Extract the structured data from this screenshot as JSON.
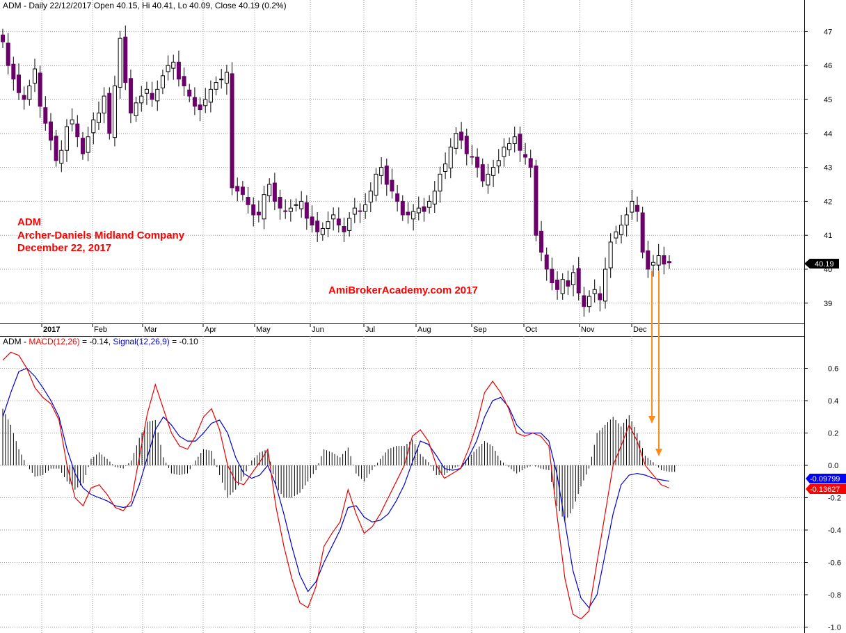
{
  "price_panel": {
    "header": "ADM - Daily 22/12/2017 Open 40.15, Hi 40.41, Lo 40.09, Close 40.19 (0.2%)",
    "annotation_lines": [
      "ADM",
      "Archer-Daniels Midland Company",
      "December 22, 2017"
    ],
    "watermark": "AmiBrokerAcademy.com  2017",
    "last_price_label": "40.19"
  },
  "macd_panel": {
    "prefix": "ADM - ",
    "macd_label": "MACD(12,26)",
    "macd_value": " = -0.14, ",
    "signal_label": "Signal(12,26,9)",
    "signal_value": " = -0.10",
    "signal_last_label": "-0.09799",
    "macd_last_label": "-0.13627"
  },
  "colors": {
    "candle_up": "#6b006b",
    "candle_line": "#000000",
    "macd_line": "#e60000",
    "signal_line": "#0000cc",
    "histogram": "#000000",
    "annotation": "#ff0000",
    "arrow": "#ff8c1a",
    "grid": "#999999"
  },
  "chart_data": [
    {
      "type": "candlestick",
      "title": "ADM - Daily 22/12/2017 Open 40.15, Hi 40.41, Lo 40.09, Close 40.19 (0.2%)",
      "x_tick_labels": [
        "2017",
        "Feb",
        "Mar",
        "Apr",
        "May",
        "Jun",
        "Jul",
        "Aug",
        "Sep",
        "Oct",
        "Nov",
        "Dec"
      ],
      "y_ticks": [
        39,
        40,
        41,
        42,
        43,
        44,
        45,
        46,
        47
      ],
      "ylim": [
        38.4,
        47.7
      ],
      "grid": true,
      "last_close": 40.19,
      "close_series_approx": [
        46.7,
        46.0,
        45.6,
        45.2,
        45.0,
        45.4,
        45.9,
        44.8,
        44.3,
        43.8,
        43.2,
        43.5,
        44.2,
        44.4,
        43.9,
        43.4,
        43.9,
        44.4,
        44.6,
        45.1,
        44.0,
        45.4,
        46.8,
        45.5,
        44.6,
        44.9,
        45.1,
        45.3,
        45.0,
        45.3,
        45.7,
        46.0,
        46.1,
        45.6,
        45.4,
        45.1,
        44.8,
        44.7,
        45.0,
        45.3,
        45.5,
        45.6,
        45.8,
        42.4,
        42.3,
        42.2,
        41.9,
        41.6,
        41.6,
        42.2,
        42.5,
        42.0,
        41.8,
        41.7,
        41.8,
        41.9,
        42.0,
        41.5,
        41.3,
        41.1,
        41.2,
        41.4,
        41.6,
        41.3,
        41.1,
        41.5,
        41.8,
        41.7,
        41.9,
        42.3,
        42.8,
        43.0,
        42.5,
        42.3,
        42.0,
        41.6,
        41.6,
        41.7,
        41.8,
        41.7,
        42.0,
        42.3,
        42.8,
        43.1,
        43.6,
        44.0,
        43.8,
        43.4,
        43.3,
        43.0,
        42.6,
        42.8,
        43.0,
        43.2,
        43.6,
        43.7,
        43.9,
        43.5,
        43.3,
        43.0,
        41.0,
        40.5,
        40.0,
        39.6,
        39.4,
        39.7,
        39.5,
        39.9,
        39.3,
        38.9,
        39.2,
        39.4,
        39.1,
        40.0,
        40.8,
        41.1,
        41.3,
        41.6,
        42.0,
        41.7,
        40.5,
        40.0,
        40.2,
        40.4,
        40.15,
        40.19
      ]
    },
    {
      "type": "line",
      "title": "MACD(12,26) = -0.14, Signal(12,26,9) = -0.10",
      "y_ticks": [
        -1.0,
        -0.8,
        -0.6,
        -0.4,
        -0.2,
        0.0,
        0.2,
        0.4,
        0.6
      ],
      "ylim": [
        -1.03,
        0.8
      ],
      "grid": true,
      "series": [
        {
          "name": "MACD(12,26)",
          "values": [
            0.65,
            0.7,
            0.68,
            0.6,
            0.48,
            0.42,
            0.38,
            0.28,
            0.0,
            -0.2,
            -0.25,
            -0.14,
            -0.12,
            -0.18,
            -0.26,
            -0.28,
            -0.22,
            0.05,
            0.32,
            0.5,
            0.35,
            0.2,
            0.12,
            0.1,
            0.18,
            0.3,
            0.35,
            0.22,
            0.0,
            -0.1,
            -0.12,
            -0.05,
            0.02,
            0.1,
            -0.25,
            -0.5,
            -0.7,
            -0.85,
            -0.88,
            -0.75,
            -0.5,
            -0.42,
            -0.35,
            -0.15,
            -0.3,
            -0.42,
            -0.38,
            -0.3,
            -0.2,
            -0.1,
            0.0,
            0.18,
            0.22,
            0.15,
            0.0,
            -0.08,
            -0.05,
            -0.02,
            0.1,
            0.25,
            0.45,
            0.52,
            0.45,
            0.35,
            0.2,
            0.18,
            0.2,
            0.18,
            0.12,
            -0.3,
            -0.7,
            -0.92,
            -0.95,
            -0.9,
            -0.6,
            -0.3,
            0.0,
            0.12,
            0.25,
            0.15,
            0.0,
            -0.06,
            -0.12,
            -0.14
          ]
        },
        {
          "name": "Signal(12,26,9)",
          "values": [
            0.3,
            0.45,
            0.58,
            0.6,
            0.55,
            0.48,
            0.4,
            0.3,
            0.1,
            -0.05,
            -0.14,
            -0.18,
            -0.2,
            -0.22,
            -0.25,
            -0.26,
            -0.25,
            -0.12,
            0.05,
            0.22,
            0.3,
            0.25,
            0.18,
            0.15,
            0.15,
            0.2,
            0.26,
            0.28,
            0.2,
            0.05,
            -0.05,
            -0.08,
            -0.06,
            0.0,
            -0.12,
            -0.3,
            -0.5,
            -0.68,
            -0.78,
            -0.72,
            -0.6,
            -0.5,
            -0.4,
            -0.26,
            -0.25,
            -0.32,
            -0.35,
            -0.34,
            -0.3,
            -0.22,
            -0.12,
            0.02,
            0.15,
            0.13,
            0.06,
            -0.02,
            -0.03,
            -0.02,
            0.05,
            0.15,
            0.3,
            0.4,
            0.42,
            0.36,
            0.25,
            0.2,
            0.2,
            0.2,
            0.15,
            -0.05,
            -0.35,
            -0.65,
            -0.82,
            -0.88,
            -0.8,
            -0.55,
            -0.3,
            -0.12,
            -0.06,
            -0.05,
            -0.06,
            -0.08,
            -0.09,
            -0.098
          ]
        }
      ],
      "histogram_approx": [
        0.35,
        0.25,
        0.1,
        0.0,
        -0.07,
        -0.06,
        -0.02,
        -0.02,
        -0.1,
        -0.15,
        -0.11,
        0.04,
        0.08,
        0.04,
        -0.01,
        -0.02,
        0.03,
        0.17,
        0.27,
        0.28,
        0.05,
        -0.05,
        -0.06,
        -0.05,
        0.03,
        0.1,
        0.09,
        -0.06,
        -0.2,
        -0.15,
        -0.07,
        0.03,
        0.08,
        0.1,
        -0.13,
        -0.2,
        -0.2,
        -0.17,
        -0.1,
        -0.03,
        0.1,
        0.08,
        0.05,
        0.11,
        -0.05,
        -0.1,
        -0.03,
        0.04,
        0.1,
        0.12,
        0.12,
        0.16,
        0.07,
        0.02,
        -0.06,
        -0.06,
        -0.02,
        0.0,
        0.05,
        0.1,
        0.15,
        0.12,
        0.03,
        -0.01,
        -0.05,
        -0.02,
        0.0,
        -0.02,
        -0.03,
        -0.25,
        -0.35,
        -0.27,
        -0.13,
        -0.02,
        0.2,
        0.25,
        0.3,
        0.24,
        0.31,
        0.2,
        0.06,
        0.02,
        -0.03,
        -0.04
      ]
    }
  ]
}
